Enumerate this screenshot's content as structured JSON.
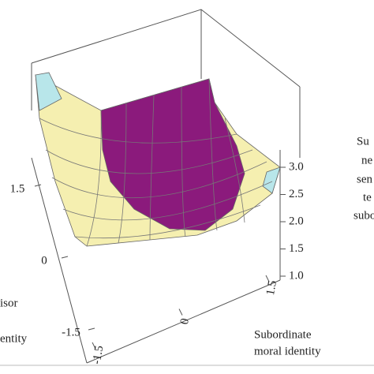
{
  "chart_data": {
    "type": "surface",
    "x_label": [
      "Subordinate",
      "moral identity"
    ],
    "y_label": [
      "isor",
      "entity"
    ],
    "z_label": [
      "Su",
      "ne",
      "sen",
      "te",
      "subo"
    ],
    "xlim": [
      -1.5,
      1.5
    ],
    "xticks": [
      -1.5,
      0,
      1.5
    ],
    "ylim": [
      -1.5,
      1.5
    ],
    "yticks": [
      -1.5,
      0,
      1.5
    ],
    "zlim": [
      1,
      3
    ],
    "zticks": [
      {
        "value": 1,
        "label": "1.0"
      },
      {
        "value": 1.5,
        "label": "1.5"
      },
      {
        "value": 2,
        "label": "2.0"
      },
      {
        "value": 2.5,
        "label": "2.5"
      },
      {
        "value": 3,
        "label": "3.0"
      }
    ],
    "colors": {
      "low": "#f5efb0",
      "high": "#8b1a7c",
      "edge": "#b8e6ea"
    }
  }
}
